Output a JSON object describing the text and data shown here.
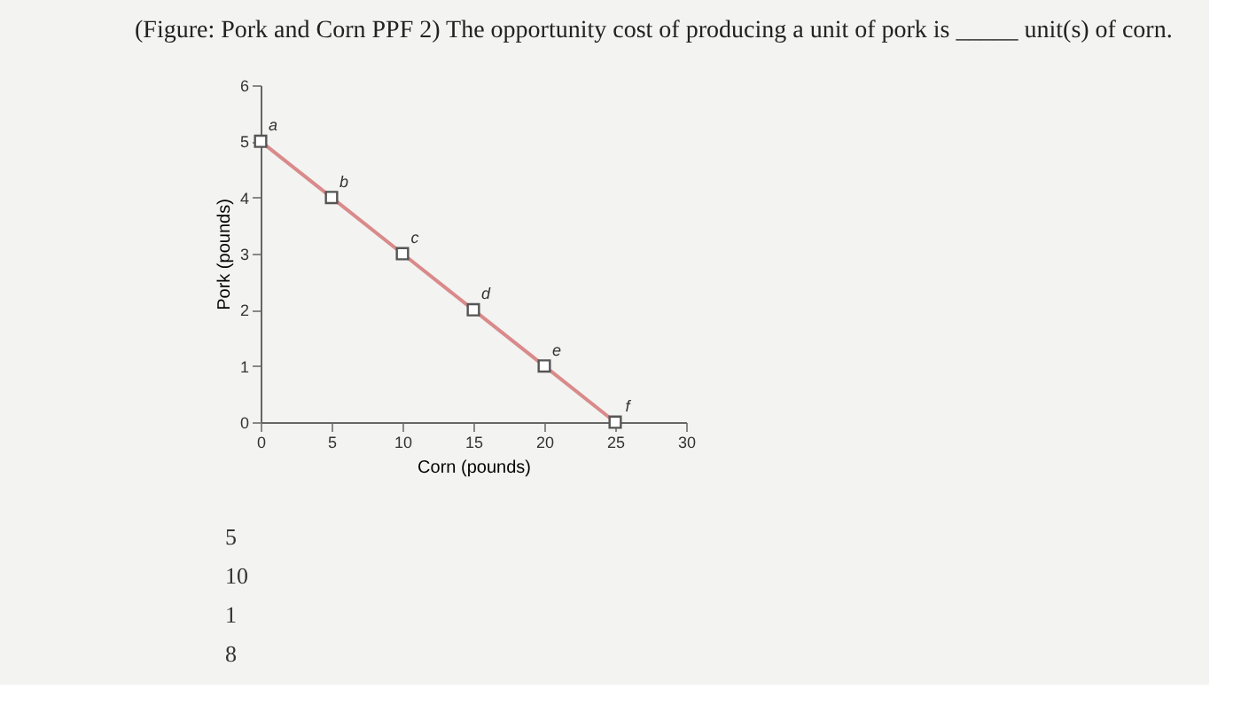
{
  "chart_data": {
    "type": "line",
    "title": "(Figure: Pork and Corn PPF 2) The opportunity cost of producing a unit of pork is _____ unit(s) of corn.",
    "xlabel": "Corn (pounds)",
    "ylabel": "Pork (pounds)",
    "x": [
      0,
      5,
      10,
      15,
      20,
      25
    ],
    "series": [
      {
        "color": "#d98a8a",
        "values": [
          5,
          4,
          3,
          2,
          1,
          0
        ]
      }
    ],
    "xlim": [
      0,
      30
    ],
    "ylim": [
      0,
      6
    ],
    "xticks": [
      0,
      5,
      10,
      15,
      20,
      25,
      30
    ],
    "yticks": [
      0,
      1,
      2,
      3,
      4,
      5,
      6
    ],
    "grid": false,
    "marker": "square",
    "line_style": "solid",
    "annotations": [
      {
        "text": "a",
        "x": 0,
        "y": 5
      },
      {
        "text": "b",
        "x": 5,
        "y": 4
      },
      {
        "text": "c",
        "x": 10,
        "y": 3
      },
      {
        "text": "d",
        "x": 15,
        "y": 2
      },
      {
        "text": "e",
        "x": 20,
        "y": 1
      },
      {
        "text": "f",
        "x": 25,
        "y": 0
      },
      "5",
      "10",
      "1",
      "8"
    ]
  }
}
